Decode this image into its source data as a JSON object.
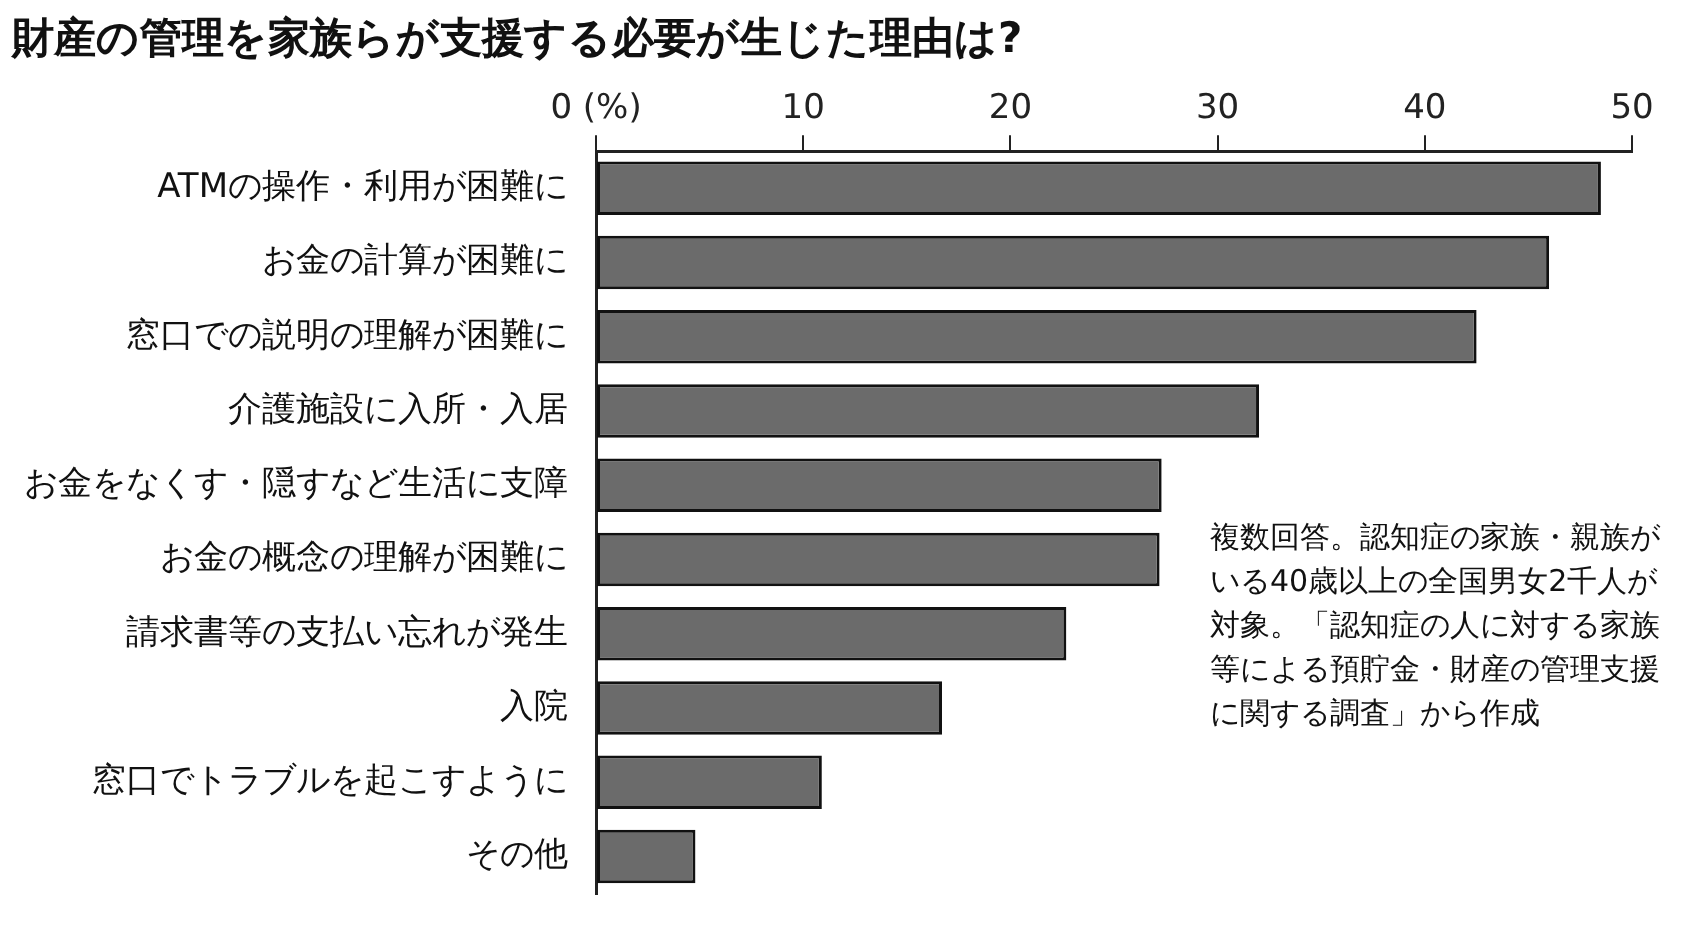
{
  "chart_data": {
    "type": "bar",
    "orientation": "horizontal",
    "title": "財産の管理を家族らが支援する必要が生じた理由は?",
    "categories": [
      "ATMの操作・利用が困難に",
      "お金の計算が困難に",
      "窓口での説明の理解が困難に",
      "介護施設に入所・入居",
      "お金をなくす・隠すなど生活に支障",
      "お金の概念の理解が困難に",
      "請求書等の支払い忘れが発生",
      "入院",
      "窓口でトラブルを起こすように",
      "その他"
    ],
    "values": [
      48.5,
      46.0,
      42.5,
      32.0,
      27.3,
      27.2,
      22.7,
      16.7,
      10.9,
      4.8
    ],
    "color": "#6b6b6b",
    "xlim": [
      0,
      50
    ],
    "xticks": [
      {
        "value": 0,
        "label": "0 (%)"
      },
      10,
      20,
      30,
      40,
      50
    ],
    "grid": false,
    "legend": false,
    "annotations": [
      "複数回答。認知症の家族・親族がいる40歳以上の全国男女2千人が対象。「認知症の人に対する家族等による預貯金・財産の管理支援に関する調査」から作成"
    ]
  }
}
